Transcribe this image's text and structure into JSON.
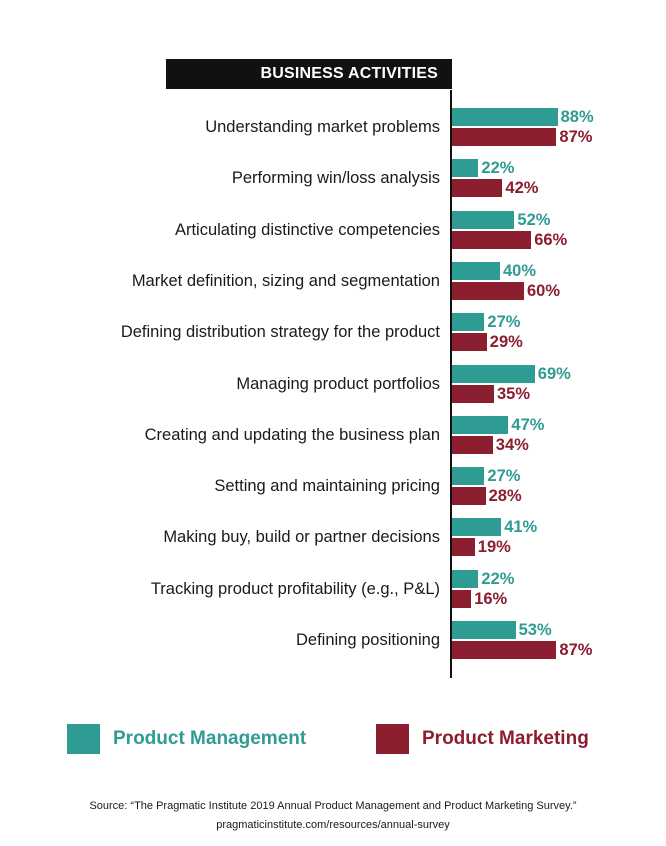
{
  "colors": {
    "product_management": "#2e9c93",
    "product_marketing": "#8b1e2f",
    "header_bg": "#111111"
  },
  "chart_data": {
    "type": "bar",
    "orientation": "horizontal",
    "title": "BUSINESS ACTIVITIES",
    "categories": [
      "Understanding market problems",
      "Performing win/loss analysis",
      "Articulating distinctive competencies",
      "Market definition, sizing and segmentation",
      "Defining distribution strategy for the product",
      "Managing product portfolios",
      "Creating and updating the business plan",
      "Setting and maintaining pricing",
      "Making buy, build or partner decisions",
      "Tracking product profitability (e.g., P&L)",
      "Defining positioning"
    ],
    "series": [
      {
        "name": "Product Management",
        "values": [
          88,
          22,
          52,
          40,
          27,
          69,
          47,
          27,
          41,
          22,
          53
        ]
      },
      {
        "name": "Product Marketing",
        "values": [
          87,
          42,
          66,
          60,
          29,
          35,
          34,
          28,
          19,
          16,
          87
        ]
      }
    ],
    "xlim": [
      0,
      100
    ],
    "grid": false,
    "legend": "bottom"
  },
  "legend": {
    "pm_label": "Product Management",
    "pmk_label": "Product Marketing"
  },
  "footer": {
    "source": "Source: “The Pragmatic Institute 2019 Annual Product Management and Product Marketing Survey.”",
    "url": "pragmaticinstitute.com/resources/annual-survey"
  }
}
